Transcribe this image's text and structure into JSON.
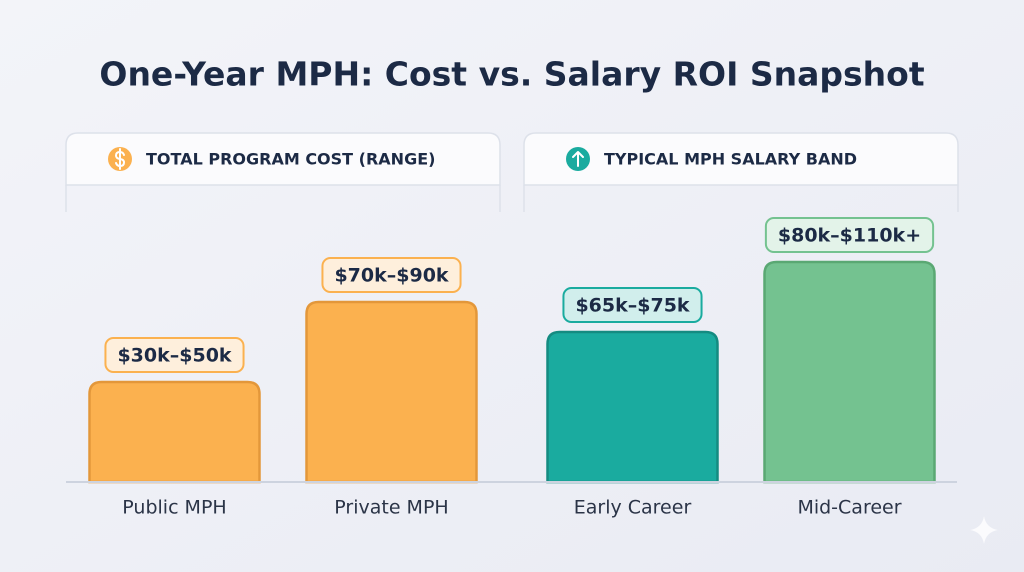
{
  "title": "One-Year MPH: Cost vs. Salary ROI Snapshot",
  "chart_data": [
    {
      "type": "bar",
      "title": "TOTAL PROGRAM COST (RANGE)",
      "categories": [
        "Public MPH",
        "Private MPH"
      ],
      "values": [
        50000,
        90000
      ],
      "value_labels": [
        "$30k–$50k",
        "$70k–$90k"
      ],
      "colors": [
        "#fbb14f",
        "#fbb14f"
      ],
      "edge_colors": [
        "#e3973a",
        "#e3973a"
      ],
      "ylim": [
        0,
        120000
      ]
    },
    {
      "type": "bar",
      "title": "TYPICAL MPH SALARY BAND",
      "categories": [
        "Early Career",
        "Mid-Career"
      ],
      "values": [
        75000,
        110000
      ],
      "value_labels": [
        "$65k–$75k",
        "$80k–$110k+"
      ],
      "colors": [
        "#1aab9f",
        "#74c290"
      ],
      "edge_colors": [
        "#148b81",
        "#5aa873"
      ],
      "ylim": [
        0,
        120000
      ]
    }
  ]
}
